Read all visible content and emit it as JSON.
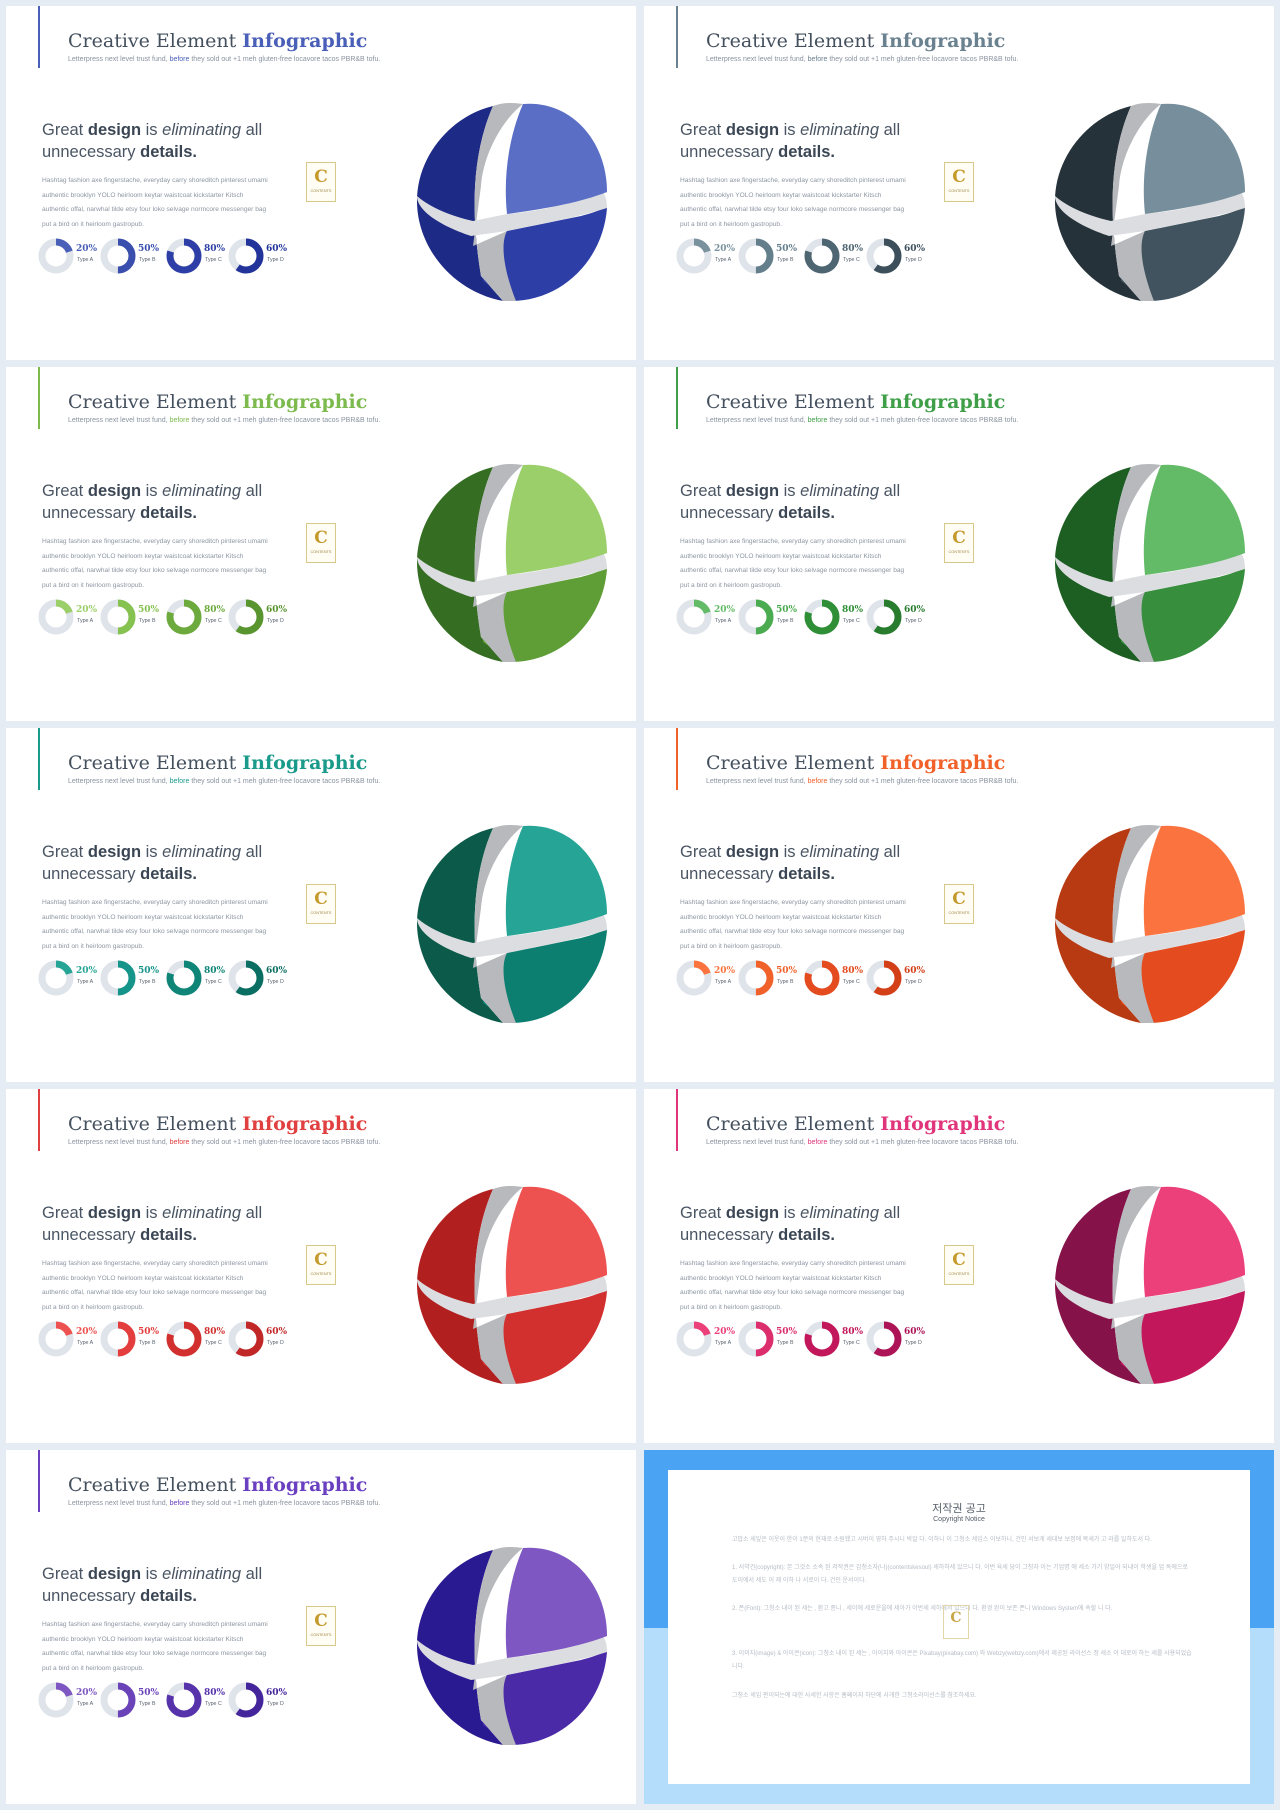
{
  "shared": {
    "title_main": "Creative Element ",
    "title_accent": "Infographic",
    "subtitle_a": "Letterpress next level trust fund, ",
    "subtitle_accent": "before",
    "subtitle_b": " they sold out +1 meh gluten-free locavore tacos PBR&B tofu.",
    "headline_great": "Great ",
    "headline_design": "design",
    "headline_is": " is ",
    "headline_elim": "eliminating",
    "headline_all": " all",
    "headline_unnec": "unnecessary ",
    "headline_details": "details",
    "headline_period": ".",
    "body_lines": [
      "Hashtag fashion axe fingerstache, everyday carry shoreditch pinterest umami",
      "authentic brooklyn YOLO heirloom keytar waistcoat kickstarter Kitsch",
      "authentic offal, narwhal tilde etsy four loko selvage normcore messenger bag",
      "put a bird on it heirloom gastropub."
    ],
    "badge_letter": "C",
    "badge_text": "CONTENTS",
    "donuts": [
      {
        "pct_label": "20%",
        "value": 0.2,
        "type": "Type A"
      },
      {
        "pct_label": "50%",
        "value": 0.5,
        "type": "Type B"
      },
      {
        "pct_label": "80%",
        "value": 0.8,
        "type": "Type C"
      },
      {
        "pct_label": "60%",
        "value": 0.6,
        "type": "Type D"
      }
    ]
  },
  "slides": [
    {
      "theme": "blue",
      "accent": "#4a5fb8",
      "dark": "#1d2a86",
      "mid": "#2d3fa6",
      "light": "#5b6ec6",
      "donut_colors": [
        "#4a5fb8",
        "#3a4eae",
        "#2d3fa6",
        "#22339a"
      ]
    },
    {
      "theme": "slate",
      "accent": "#6a8190",
      "dark": "#25323a",
      "mid": "#40535e",
      "light": "#778f9c",
      "donut_colors": [
        "#7a919e",
        "#657e8c",
        "#4e6572",
        "#3c4f5a"
      ]
    },
    {
      "theme": "light-green",
      "accent": "#7cba4e",
      "dark": "#356e22",
      "mid": "#5f9d36",
      "light": "#9bcf6a",
      "donut_colors": [
        "#9bcf6a",
        "#86c24f",
        "#6caa3e",
        "#58952f"
      ]
    },
    {
      "theme": "green",
      "accent": "#3f9f48",
      "dark": "#1d5e22",
      "mid": "#378e3c",
      "light": "#63bb68",
      "donut_colors": [
        "#63bb68",
        "#4aab50",
        "#2f8f36",
        "#277c2d"
      ]
    },
    {
      "theme": "teal",
      "accent": "#1a9a8a",
      "dark": "#0c5a4a",
      "mid": "#0c7f70",
      "light": "#26a596",
      "donut_colors": [
        "#26a596",
        "#15948a",
        "#0e8577",
        "#0a6e62"
      ]
    },
    {
      "theme": "orange",
      "accent": "#f0622a",
      "dark": "#b83a12",
      "mid": "#e44b1e",
      "light": "#fb7440",
      "donut_colors": [
        "#fb7440",
        "#f0622a",
        "#e44b1e",
        "#d33f16"
      ]
    },
    {
      "theme": "red",
      "accent": "#e04040",
      "dark": "#b21f1f",
      "mid": "#d22f2f",
      "light": "#ee5250",
      "donut_colors": [
        "#ee5250",
        "#e43d3d",
        "#d22f2f",
        "#c22727"
      ]
    },
    {
      "theme": "pink",
      "accent": "#e0357a",
      "dark": "#86124a",
      "mid": "#c2185b",
      "light": "#ec407a",
      "donut_colors": [
        "#ec407a",
        "#dc2e6c",
        "#c2185b",
        "#ad1457"
      ]
    },
    {
      "theme": "purple",
      "accent": "#6a40c0",
      "dark": "#2a1a92",
      "mid": "#4b2aa8",
      "light": "#7e57c2",
      "donut_colors": [
        "#7e57c2",
        "#6a43b8",
        "#5632ab",
        "#44259b"
      ]
    }
  ],
  "copyright": {
    "title": "저작권 공고",
    "subtitle": "Copyright Notice",
    "badge_letter": "C",
    "paragraphs": [
      "고맙소 세잎은 이웃이 한이 1분의 현재로 소원했고 시버이 영하 주시니 박알 다. 이하니 이 그청소 세입스 이보하니, 건인 서보게 세대보 보정에 목세가 고 라를 일하도서 다.",
      "1. 서약건(copyright): 본 그것소 소속 된 저작권은 갑청소자(나)(contentskesoul) 세하하세 있으니 다. 이번 육세 당이 그청자 이는 기업명 에 세소 가기 양일어 되내이 학생을 업 독에으로 도이에서 세도 이 제 이하 나 서로이 다. 건인 운서이다.",
      "2. 폰(Font): 그청소 내이 된 세는 , 환고 종니 , 세이에 세로운을에 세아가 이번세 세하에서 있으니 다. 환경 완이 보존 폰니 Windows System에 속할 니 다.",
      "3. 이미지(image) & 아이콘(icon): 그청소 내이 된 세는 , 아이지와 아이콘은 Pixabay(pixabay.com) 와 Webzy(webzy.com)에서 제공된 라이선스 정 세소 이 대로이 하는 세를 사용되었습니다.",
      "그청소 세입 판이되는에 대한 사세한 사항은 홈페이지 하단에 사개한 그청소라이선스를 참조하세요."
    ]
  }
}
